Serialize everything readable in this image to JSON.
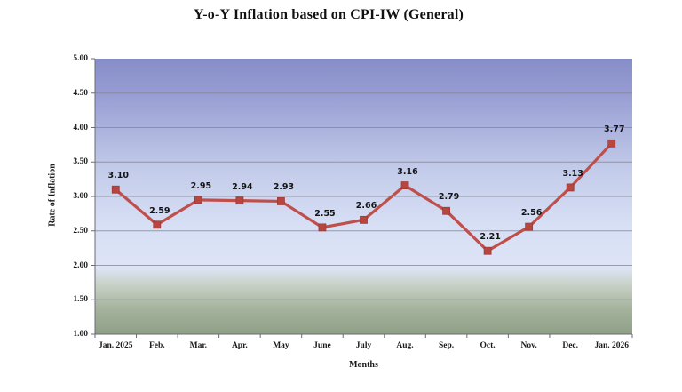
{
  "chart_data": {
    "type": "line",
    "title": "Y-o-Y Inflation based on CPI-IW (General)",
    "xlabel": "Months",
    "ylabel": "Rate of Inflation",
    "categories": [
      "Jan. 2025",
      "Feb.",
      "Mar.",
      "Apr.",
      "May",
      "June",
      "July",
      "Aug.",
      "Sep.",
      "Oct.",
      "Nov.",
      "Dec.",
      "Jan. 2026"
    ],
    "values": [
      3.1,
      2.59,
      2.95,
      2.94,
      2.93,
      2.55,
      2.66,
      3.16,
      2.79,
      2.21,
      2.56,
      3.13,
      3.77
    ],
    "point_labels": [
      "3.10",
      "2.59",
      "2.95",
      "2.94",
      "2.93",
      "2.55",
      "2.66",
      "3.16",
      "2.79",
      "2.21",
      "2.56",
      "3.13",
      "3.77"
    ],
    "ylim": [
      1.0,
      5.0
    ],
    "ytick_step": 0.5,
    "ytick_labels": [
      "5.00",
      "4.50",
      "4.00",
      "3.50",
      "3.00",
      "2.50",
      "2.00",
      "1.50",
      "1.00"
    ],
    "grid": true,
    "legend_position": "none",
    "marker": "square"
  },
  "colors": {
    "series_line": "#bf4f4b",
    "marker_fill": "#b8453f",
    "marker_stroke": "#9c3a36",
    "gridline": "#83838f",
    "axis_line": "#6a6a74",
    "gradient_top": "#868dc8",
    "gradient_upper": "#969cd2",
    "gradient_mid": "#c2cbe9",
    "gradient_light": "#dde4f6",
    "gradient_green": "#a4b29c",
    "gradient_bottom": "#90a087",
    "text": "#111111"
  }
}
